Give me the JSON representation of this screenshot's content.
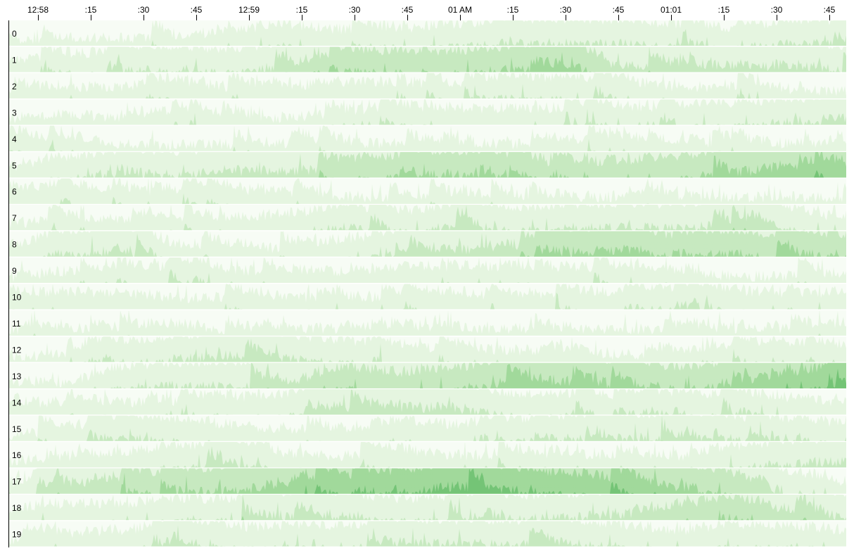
{
  "chart_data": {
    "type": "horizon",
    "x_axis": {
      "tick_labels": [
        "12:58",
        ":15",
        ":30",
        ":45",
        "12:59",
        ":15",
        ":30",
        ":45",
        "01 AM",
        ":15",
        ":30",
        ":45",
        "01:01",
        ":15",
        ":30",
        ":45"
      ],
      "tick_interval_seconds": 15
    },
    "series_labels": [
      "0",
      "1",
      "2",
      "3",
      "4",
      "5",
      "6",
      "7",
      "8",
      "9",
      "10",
      "11",
      "12",
      "13",
      "14",
      "15",
      "16",
      "17",
      "18",
      "19"
    ],
    "bands": 4,
    "palette": [
      "#f7fcf5",
      "#e5f5e0",
      "#c7e9c0",
      "#a1d99b",
      "#74c476",
      "#41ab5d",
      "#238b45",
      "#006d2c",
      "#00441b"
    ],
    "value_range": [
      0,
      1
    ],
    "series_mean_levels_by_time": [
      [
        0.05,
        0.05,
        0.05,
        0.05,
        0.15,
        0.2,
        0.15,
        0.15,
        0.2,
        0.25,
        0.25,
        0.25,
        0.2,
        0.15,
        0.2,
        0.25
      ],
      [
        0.1,
        0.15,
        0.2,
        0.25,
        0.2,
        0.3,
        0.45,
        0.45,
        0.45,
        0.5,
        0.55,
        0.3,
        0.3,
        0.3,
        0.3,
        0.25
      ],
      [
        0.05,
        0.1,
        0.1,
        0.15,
        0.1,
        0.1,
        0.15,
        0.15,
        0.1,
        0.2,
        0.2,
        0.15,
        0.1,
        0.1,
        0.05,
        0.05
      ],
      [
        0.05,
        0.1,
        0.05,
        0.1,
        0.05,
        0.05,
        0.1,
        0.15,
        0.15,
        0.15,
        0.15,
        0.15,
        0.15,
        0.2,
        0.25,
        0.3
      ],
      [
        0.2,
        0.1,
        0.05,
        0.05,
        0.05,
        0.05,
        0.05,
        0.05,
        0.05,
        0.05,
        0.1,
        0.1,
        0.1,
        0.05,
        0.05,
        0.1
      ],
      [
        0.1,
        0.2,
        0.25,
        0.25,
        0.3,
        0.3,
        0.35,
        0.45,
        0.5,
        0.45,
        0.35,
        0.4,
        0.45,
        0.5,
        0.6,
        0.6
      ],
      [
        0.15,
        0.15,
        0.1,
        0.1,
        0.1,
        0.1,
        0.05,
        0.05,
        0.05,
        0.05,
        0.05,
        0.05,
        0.05,
        0.05,
        0.05,
        0.05
      ],
      [
        0.05,
        0.1,
        0.1,
        0.1,
        0.1,
        0.15,
        0.25,
        0.15,
        0.25,
        0.2,
        0.25,
        0.25,
        0.25,
        0.3,
        0.2,
        0.1
      ],
      [
        0.1,
        0.25,
        0.3,
        0.1,
        0.1,
        0.05,
        0.15,
        0.25,
        0.3,
        0.35,
        0.5,
        0.55,
        0.45,
        0.5,
        0.45,
        0.45
      ],
      [
        0.05,
        0.1,
        0.1,
        0.15,
        0.1,
        0.1,
        0.1,
        0.15,
        0.15,
        0.15,
        0.15,
        0.1,
        0.1,
        0.05,
        0.05,
        0.05
      ],
      [
        0.1,
        0.15,
        0.15,
        0.1,
        0.1,
        0.1,
        0.1,
        0.1,
        0.15,
        0.1,
        0.15,
        0.15,
        0.2,
        0.15,
        0.15,
        0.15
      ],
      [
        0.05,
        0.05,
        0.05,
        0.1,
        0.05,
        0.05,
        0.05,
        0.1,
        0.05,
        0.05,
        0.05,
        0.05,
        0.05,
        0.05,
        0.05,
        0.1
      ],
      [
        0.05,
        0.05,
        0.15,
        0.25,
        0.3,
        0.25,
        0.2,
        0.15,
        0.1,
        0.1,
        0.1,
        0.05,
        0.1,
        0.15,
        0.15,
        0.15
      ],
      [
        0.05,
        0.05,
        0.2,
        0.25,
        0.25,
        0.3,
        0.45,
        0.4,
        0.45,
        0.55,
        0.55,
        0.5,
        0.45,
        0.5,
        0.65,
        0.75
      ],
      [
        0.05,
        0.1,
        0.1,
        0.1,
        0.15,
        0.2,
        0.3,
        0.3,
        0.3,
        0.2,
        0.2,
        0.15,
        0.15,
        0.2,
        0.15,
        0.1
      ],
      [
        0.05,
        0.1,
        0.2,
        0.2,
        0.15,
        0.1,
        0.1,
        0.2,
        0.15,
        0.2,
        0.2,
        0.25,
        0.25,
        0.2,
        0.15,
        0.15
      ],
      [
        0.05,
        0.1,
        0.15,
        0.2,
        0.25,
        0.1,
        0.1,
        0.15,
        0.1,
        0.1,
        0.1,
        0.1,
        0.1,
        0.2,
        0.25,
        0.3
      ],
      [
        0.1,
        0.3,
        0.4,
        0.45,
        0.5,
        0.6,
        0.65,
        0.7,
        0.8,
        0.75,
        0.7,
        0.65,
        0.55,
        0.45,
        0.2,
        0.1
      ],
      [
        0.1,
        0.15,
        0.15,
        0.2,
        0.2,
        0.25,
        0.25,
        0.2,
        0.2,
        0.2,
        0.25,
        0.3,
        0.4,
        0.45,
        0.35,
        0.2
      ],
      [
        0.05,
        0.1,
        0.15,
        0.2,
        0.15,
        0.2,
        0.2,
        0.25,
        0.25,
        0.25,
        0.25,
        0.2,
        0.15,
        0.2,
        0.2,
        0.15
      ]
    ]
  }
}
